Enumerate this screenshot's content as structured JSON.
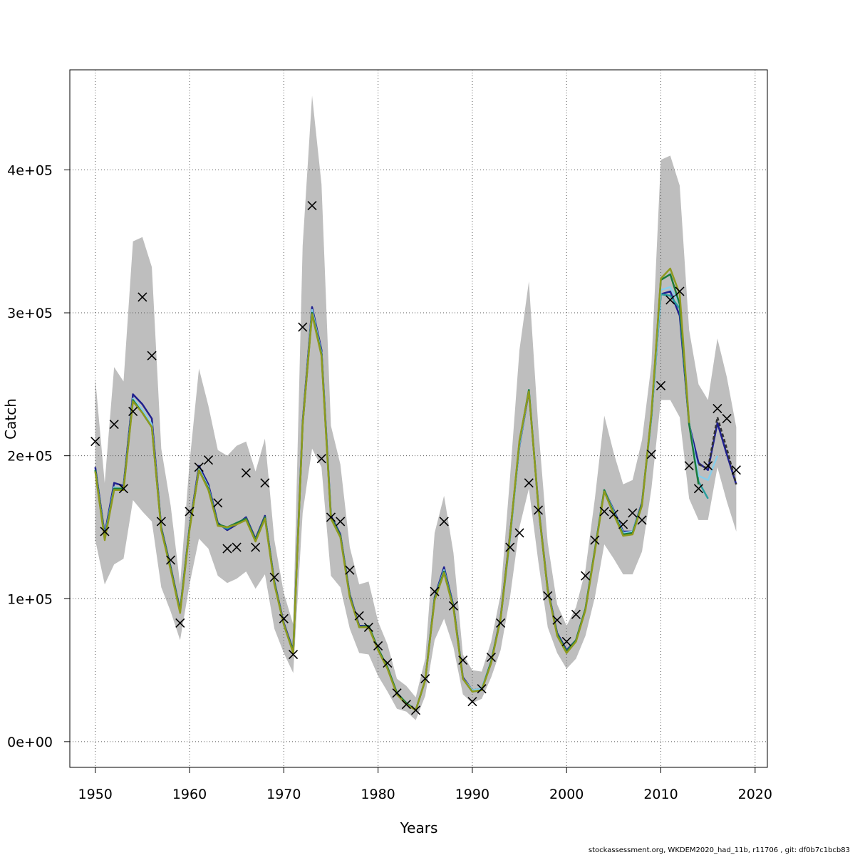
{
  "chart_data": {
    "type": "line",
    "xlabel": "Years",
    "ylabel": "Catch",
    "xlim": [
      1947.3,
      2021.3
    ],
    "ylim": [
      -18000,
      470000
    ],
    "x_ticks": [
      1950,
      1960,
      1970,
      1980,
      1990,
      2000,
      2010,
      2020
    ],
    "x_tick_labels": [
      "1950",
      "1960",
      "1970",
      "1980",
      "1990",
      "2000",
      "2010",
      "2020"
    ],
    "y_ticks": [
      0,
      100000,
      200000,
      300000,
      400000
    ],
    "y_tick_labels": [
      "0e+00",
      "1e+05",
      "2e+05",
      "3e+05",
      "4e+05"
    ],
    "grid": true,
    "colors": {
      "band": "#bebebe",
      "observed": "#000000",
      "series": [
        "#1f1f8f",
        "#2a9d9d",
        "#87ceeb",
        "#1a7a3a",
        "#8f9a1e",
        "#333333"
      ]
    },
    "observed": {
      "x": [
        1950,
        1951,
        1952,
        1953,
        1954,
        1955,
        1956,
        1957,
        1958,
        1959,
        1960,
        1961,
        1962,
        1963,
        1964,
        1965,
        1966,
        1967,
        1968,
        1969,
        1970,
        1971,
        1972,
        1973,
        1974,
        1975,
        1976,
        1977,
        1978,
        1979,
        1980,
        1981,
        1982,
        1983,
        1984,
        1985,
        1986,
        1987,
        1988,
        1989,
        1990,
        1991,
        1992,
        1993,
        1994,
        1995,
        1996,
        1997,
        1998,
        1999,
        2000,
        2001,
        2002,
        2003,
        2004,
        2005,
        2006,
        2007,
        2008,
        2009,
        2010,
        2011,
        2012,
        2013,
        2014,
        2015,
        2016,
        2017,
        2018
      ],
      "y": [
        210000,
        147000,
        222000,
        177000,
        231000,
        311000,
        270000,
        154000,
        127000,
        83000,
        161000,
        192000,
        197000,
        167000,
        135000,
        136000,
        188000,
        136000,
        181000,
        115000,
        86000,
        61000,
        290000,
        375000,
        198000,
        157000,
        154000,
        120000,
        88000,
        80000,
        67000,
        55000,
        34000,
        26000,
        22000,
        44000,
        105000,
        154000,
        95000,
        57000,
        28000,
        37000,
        59000,
        83000,
        136000,
        146000,
        181000,
        162000,
        102000,
        85000,
        70000,
        89000,
        116000,
        141000,
        161000,
        159000,
        152000,
        160000,
        155000,
        201000,
        249000,
        309000,
        315000,
        193000,
        177000,
        193000,
        233000,
        226000,
        190000
      ]
    },
    "confidence_band": {
      "x": [
        1950,
        1951,
        1952,
        1953,
        1954,
        1955,
        1956,
        1957,
        1958,
        1959,
        1960,
        1961,
        1962,
        1963,
        1964,
        1965,
        1966,
        1967,
        1968,
        1969,
        1970,
        1971,
        1972,
        1973,
        1974,
        1975,
        1976,
        1977,
        1978,
        1979,
        1980,
        1981,
        1982,
        1983,
        1984,
        1985,
        1986,
        1987,
        1988,
        1989,
        1990,
        1991,
        1992,
        1993,
        1994,
        1995,
        1996,
        1997,
        1998,
        1999,
        2000,
        2001,
        2002,
        2003,
        2004,
        2005,
        2006,
        2007,
        2008,
        2009,
        2010,
        2011,
        2012,
        2013,
        2014,
        2015,
        2016,
        2017,
        2018
      ],
      "upper": [
        254000,
        181000,
        262000,
        252000,
        350000,
        353000,
        332000,
        205000,
        165000,
        110000,
        195000,
        261000,
        235000,
        204000,
        200000,
        207000,
        210000,
        189000,
        212000,
        141000,
        104000,
        82000,
        347000,
        452000,
        390000,
        221000,
        194000,
        136000,
        110000,
        112000,
        84000,
        68000,
        44000,
        39000,
        31000,
        58000,
        146000,
        172000,
        132000,
        61000,
        50000,
        49000,
        70000,
        103000,
        185000,
        274000,
        322000,
        220000,
        139000,
        96000,
        81000,
        94000,
        120000,
        170000,
        228000,
        202000,
        180000,
        183000,
        211000,
        264000,
        407000,
        410000,
        389000,
        288000,
        250000,
        239000,
        282000,
        255000,
        220000
      ],
      "lower": [
        141000,
        110000,
        124000,
        128000,
        169000,
        161000,
        154000,
        108000,
        91000,
        71000,
        110000,
        142000,
        135000,
        116000,
        111000,
        114000,
        119000,
        107000,
        117000,
        79000,
        62000,
        48000,
        160000,
        205000,
        192000,
        116000,
        108000,
        79000,
        62000,
        61000,
        46000,
        35000,
        23000,
        21000,
        15000,
        32000,
        71000,
        86000,
        66000,
        33000,
        27000,
        30000,
        45000,
        64000,
        101000,
        150000,
        177000,
        126000,
        80000,
        62000,
        51000,
        58000,
        74000,
        101000,
        138000,
        128000,
        117000,
        117000,
        133000,
        177000,
        239000,
        239000,
        227000,
        170000,
        155000,
        155000,
        192000,
        168000,
        147000
      ]
    },
    "series": [
      {
        "x": [
          1950,
          1951,
          1952,
          1953,
          1954,
          1955,
          1956,
          1957,
          1958,
          1959,
          1960,
          1961,
          1962,
          1963,
          1964,
          1965,
          1966,
          1967,
          1968,
          1969,
          1970,
          1971,
          1972,
          1973,
          1974,
          1975,
          1976,
          1977,
          1978,
          1979,
          1980,
          1981,
          1982,
          1983,
          1984,
          1985,
          1986,
          1987,
          1988,
          1989,
          1990,
          1991,
          1992,
          1993,
          1994,
          1995,
          1996,
          1997,
          1998,
          1999,
          2000,
          2001,
          2002,
          2003,
          2004,
          2005,
          2006,
          2007,
          2008,
          2009,
          2010,
          2011,
          2012,
          2013,
          2014,
          2015,
          2016,
          2017,
          2018
        ],
        "y": [
          192000,
          145000,
          181000,
          179000,
          243000,
          236000,
          226000,
          150000,
          122000,
          92000,
          150000,
          193000,
          180000,
          153000,
          148000,
          152000,
          157000,
          142000,
          158000,
          112000,
          83000,
          64000,
          224000,
          304000,
          274000,
          158000,
          145000,
          103000,
          81000,
          81000,
          65000,
          52000,
          34000,
          27000,
          22000,
          43000,
          101000,
          122000,
          95000,
          45000,
          36000,
          37000,
          56000,
          87000,
          145000,
          207000,
          245000,
          166000,
          107000,
          76000,
          64000,
          71000,
          93000,
          134000,
          176000,
          162000,
          147000,
          147000,
          167000,
          228000,
          313000,
          315000,
          298000,
          222000,
          195000,
          190000,
          223000,
          201000,
          180000
        ]
      },
      {
        "x": [
          1950,
          1951,
          1952,
          1953,
          1954,
          1955,
          1956,
          1957,
          1958,
          1959,
          1960,
          1961,
          1962,
          1963,
          1964,
          1965,
          1966,
          1967,
          1968,
          1969,
          1970,
          1971,
          1972,
          1973,
          1974,
          1975,
          1976,
          1977,
          1978,
          1979,
          1980,
          1981,
          1982,
          1983,
          1984,
          1985,
          1986,
          1987,
          1988,
          1989,
          1990,
          1991,
          1992,
          1993,
          1994,
          1995,
          1996,
          1997,
          1998,
          1999,
          2000,
          2001,
          2002,
          2003,
          2004,
          2005,
          2006,
          2007,
          2008,
          2009,
          2010,
          2011,
          2012,
          2013,
          2014,
          2015
        ],
        "y": [
          190000,
          143000,
          178000,
          177000,
          240000,
          231000,
          221000,
          149000,
          121000,
          91000,
          149000,
          190000,
          177000,
          152000,
          149000,
          153000,
          156000,
          141000,
          157000,
          111000,
          82000,
          63000,
          222000,
          301000,
          272000,
          157000,
          144000,
          102000,
          80000,
          81000,
          65000,
          52000,
          34000,
          27000,
          22000,
          43000,
          100000,
          120000,
          94000,
          44000,
          36000,
          37000,
          56000,
          86000,
          142000,
          208000,
          246000,
          165000,
          106000,
          75000,
          63000,
          71000,
          93000,
          134000,
          176000,
          161000,
          145000,
          147000,
          166000,
          227000,
          313000,
          312000,
          303000,
          223000,
          182000,
          170000
        ]
      },
      {
        "x": [
          1950,
          1951,
          1952,
          1953,
          1954,
          1955,
          1956,
          1957,
          1958,
          1959,
          1960,
          1961,
          1962,
          1963,
          1964,
          1965,
          1966,
          1967,
          1968,
          1969,
          1970,
          1971,
          1972,
          1973,
          1974,
          1975,
          1976,
          1977,
          1978,
          1979,
          1980,
          1981,
          1982,
          1983,
          1984,
          1985,
          1986,
          1987,
          1988,
          1989,
          1990,
          1991,
          1992,
          1993,
          1994,
          1995,
          1996,
          1997,
          1998,
          1999,
          2000,
          2001,
          2002,
          2003,
          2004,
          2005,
          2006,
          2007,
          2008,
          2009,
          2010,
          2011,
          2012,
          2013,
          2014,
          2015,
          2016
        ],
        "y": [
          190000,
          143000,
          178000,
          177000,
          240000,
          232000,
          222000,
          149000,
          121000,
          91000,
          149000,
          191000,
          178000,
          152000,
          150000,
          153000,
          156000,
          141000,
          157000,
          111000,
          82000,
          63000,
          222000,
          302000,
          272000,
          157000,
          144000,
          102000,
          80000,
          81000,
          65000,
          52000,
          34000,
          27000,
          22000,
          43000,
          100000,
          120000,
          94000,
          44000,
          36000,
          37000,
          56000,
          86000,
          143000,
          208000,
          246000,
          165000,
          106000,
          75000,
          63000,
          71000,
          93000,
          134000,
          176000,
          161000,
          146000,
          147000,
          166000,
          228000,
          316000,
          318000,
          306000,
          222000,
          186000,
          183000,
          200000
        ]
      },
      {
        "x": [
          1950,
          1951,
          1952,
          1953,
          1954,
          1955,
          1956,
          1957,
          1958,
          1959,
          1960,
          1961,
          1962,
          1963,
          1964,
          1965,
          1966,
          1967,
          1968,
          1969,
          1970,
          1971,
          1972,
          1973,
          1974,
          1975,
          1976,
          1977,
          1978,
          1979,
          1980,
          1981,
          1982,
          1983,
          1984,
          1985,
          1986,
          1987,
          1988,
          1989,
          1990,
          1991,
          1992,
          1993,
          1994,
          1995,
          1996,
          1997,
          1998,
          1999,
          2000,
          2001,
          2002,
          2003,
          2004,
          2005,
          2006,
          2007,
          2008,
          2009,
          2010,
          2011,
          2012,
          2013,
          2014
        ],
        "y": [
          190000,
          142000,
          177000,
          177000,
          239000,
          230000,
          220000,
          149000,
          121000,
          91000,
          149000,
          190000,
          177000,
          152000,
          150000,
          153000,
          156000,
          141000,
          157000,
          111000,
          82000,
          63000,
          222000,
          300000,
          271000,
          157000,
          144000,
          102000,
          80000,
          81000,
          65000,
          52000,
          34000,
          27000,
          22000,
          43000,
          100000,
          119000,
          94000,
          44000,
          35000,
          36000,
          56000,
          86000,
          144000,
          210000,
          246000,
          165000,
          106000,
          75000,
          63000,
          71000,
          93000,
          134000,
          176000,
          160000,
          145000,
          146000,
          166000,
          229000,
          323000,
          327000,
          306000,
          222000,
          180000
        ]
      },
      {
        "x": [
          1950,
          1951,
          1952,
          1953,
          1954,
          1955,
          1956,
          1957,
          1958,
          1959,
          1960,
          1961,
          1962,
          1963,
          1964,
          1965,
          1966,
          1967,
          1968,
          1969,
          1970,
          1971,
          1972,
          1973,
          1974,
          1975,
          1976,
          1977,
          1978,
          1979,
          1980,
          1981,
          1982,
          1983,
          1984,
          1985,
          1986,
          1987,
          1988,
          1989,
          1990,
          1991,
          1992,
          1993,
          1994,
          1995,
          1996,
          1997,
          1998,
          1999,
          2000,
          2001,
          2002,
          2003,
          2004,
          2005,
          2006,
          2007,
          2008,
          2009,
          2010,
          2011,
          2012,
          2013
        ],
        "y": [
          189000,
          141000,
          176000,
          176000,
          238000,
          230000,
          220000,
          148000,
          120000,
          90000,
          148000,
          190000,
          176000,
          151000,
          150000,
          152000,
          155000,
          140000,
          156000,
          110000,
          82000,
          62000,
          222000,
          299000,
          270000,
          156000,
          143000,
          101000,
          80000,
          80000,
          64000,
          51000,
          33000,
          26000,
          22000,
          43000,
          99000,
          118000,
          93000,
          44000,
          35000,
          36000,
          55000,
          86000,
          144000,
          211000,
          245000,
          165000,
          106000,
          74000,
          62000,
          70000,
          92000,
          133000,
          175000,
          159000,
          144000,
          145000,
          165000,
          230000,
          324000,
          331000,
          313000,
          223000
        ]
      },
      {
        "x": [
          2014,
          2015,
          2016,
          2017,
          2018
        ],
        "y": [
          194000,
          191000,
          227000,
          205000,
          180000
        ]
      }
    ]
  },
  "footer_text": "stockassessment.org, WKDEM2020_had_11b, r11706 , git: df0b7c1bcb83"
}
